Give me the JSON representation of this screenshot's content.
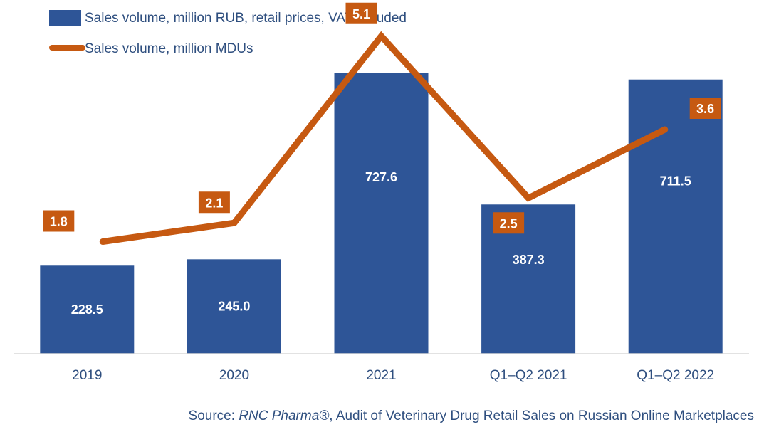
{
  "chart_data": {
    "type": "bar",
    "categories": [
      "2019",
      "2020",
      "2021",
      "Q1–Q2 2021",
      "Q1–Q2 2022"
    ],
    "series": [
      {
        "name": "Sales volume, million RUB, retail prices, VAT included",
        "type": "bar",
        "color": "#2e5597",
        "values": [
          228.5,
          245.0,
          727.6,
          387.3,
          711.5
        ],
        "labels": [
          "228.5",
          "245.0",
          "727.6",
          "387.3",
          "711.5"
        ]
      },
      {
        "name": "Sales volume, million MDUs",
        "type": "line",
        "color": "#c65911",
        "values": [
          1.8,
          2.1,
          5.1,
          2.5,
          3.6
        ],
        "labels": [
          "1.8",
          "2.1",
          "5.1",
          "2.5",
          "3.6"
        ]
      }
    ],
    "ylim": [
      0,
      727.6
    ],
    "y2lim": [
      0,
      5.6
    ],
    "grid": false,
    "legend_position": "top-left"
  },
  "source": {
    "prefix": "Source: ",
    "brand": "RNC Pharma®",
    "text": ", Audit of Veterinary Drug Retail Sales on Russian Online Marketplaces"
  }
}
